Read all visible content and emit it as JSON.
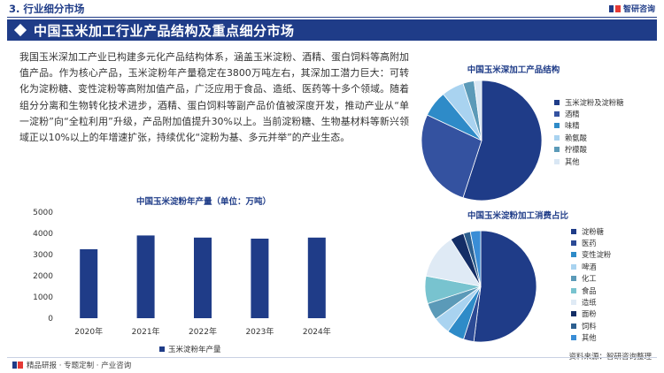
{
  "header": {
    "section_title": "3. 行业细分市场",
    "brand": "智研咨询",
    "banner_title": "中国玉米加工行业产品结构及重点细分市场"
  },
  "body_text": "我国玉米深加工产业已构建多元化产品结构体系，涵盖玉米淀粉、酒精、蛋白饲料等高附加值产品。作为核心产品，玉米淀粉年产量稳定在3800万吨左右，其深加工潜力巨大：可转化为淀粉糖、变性淀粉等高附加值产品，广泛应用于食品、造纸、医药等十多个领域。随着组分分离和生物转化技术进步，酒精、蛋白饲料等副产品价值被深度开发，推动产业从“单一淀粉”向“全粒利用”升级，产品附加值提升30%以上。当前淀粉糖、生物基材料等新兴领域正以10%以上的年增速扩张，持续优化“淀粉为基、多元并举”的产业生态。",
  "footer": {
    "left": "精品研报 · 专题定制 · 产业咨询",
    "source": "资料来源：智研咨询整理"
  },
  "colors": {
    "primary": "#1f3c88",
    "bar": "#1f3c88"
  },
  "chart_data": [
    {
      "type": "bar",
      "title": "中国玉米淀粉年产量（单位：万吨）",
      "categories": [
        "2020年",
        "2021年",
        "2022年",
        "2023年",
        "2024年"
      ],
      "series": [
        {
          "name": "玉米淀粉年产量",
          "values": [
            3250,
            3900,
            3800,
            3750,
            3800
          ]
        }
      ],
      "ylim": [
        0,
        5000
      ],
      "yticks": [
        0,
        1000,
        2000,
        3000,
        4000,
        5000
      ],
      "grid": false,
      "legend": "bottom"
    },
    {
      "type": "pie",
      "title": "中国玉米深加工产品结构",
      "labels": [
        "玉米淀粉及淀粉糖",
        "酒精",
        "味精",
        "赖氨酸",
        "柠檬酸",
        "其他"
      ],
      "values": [
        55,
        27,
        7,
        6,
        3,
        2
      ],
      "colors": [
        "#1f3c88",
        "#3452a0",
        "#2e8bc8",
        "#a9d3f0",
        "#5b9ab8",
        "#d9e7f4"
      ],
      "legend": "right"
    },
    {
      "type": "pie",
      "title": "中国玉米淀粉加工消费占比",
      "labels": [
        "淀粉糖",
        "医药",
        "变性淀粉",
        "啤酒",
        "化工",
        "食品",
        "造纸",
        "面粉",
        "饲料",
        "其他"
      ],
      "values": [
        52,
        3,
        5,
        5,
        5,
        8,
        13,
        4,
        2,
        3
      ],
      "colors": [
        "#1f3c88",
        "#2b4a95",
        "#2e8bc8",
        "#a9d3f0",
        "#5b9ab8",
        "#78c3cf",
        "#dfeaf5",
        "#142e66",
        "#2d5f8f",
        "#3a8dd6"
      ],
      "legend": "right"
    }
  ]
}
